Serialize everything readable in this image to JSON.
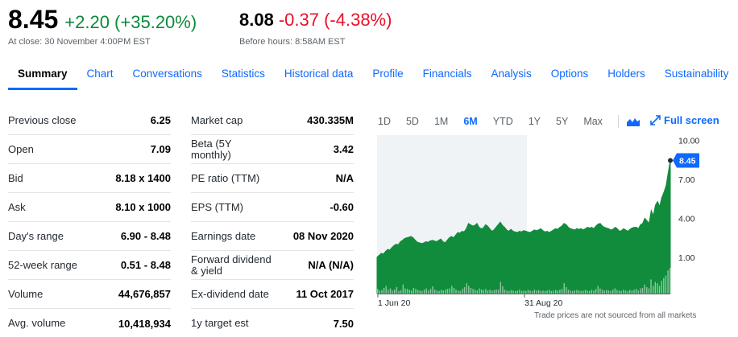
{
  "quote": {
    "price": "8.45",
    "change": "+2.20 (+35.20%)",
    "close_note": "At close: 30 November 4:00PM EST",
    "pre_price": "8.08",
    "pre_change": "-0.37 (-4.38%)",
    "pre_note": "Before hours: 8:58AM EST"
  },
  "tabs": [
    "Summary",
    "Chart",
    "Conversations",
    "Statistics",
    "Historical data",
    "Profile",
    "Financials",
    "Analysis",
    "Options",
    "Holders",
    "Sustainability"
  ],
  "stats_left": [
    {
      "label": "Previous close",
      "value": "6.25"
    },
    {
      "label": "Open",
      "value": "7.09"
    },
    {
      "label": "Bid",
      "value": "8.18 x 1400"
    },
    {
      "label": "Ask",
      "value": "8.10 x 1000"
    },
    {
      "label": "Day's range",
      "value": "6.90 - 8.48"
    },
    {
      "label": "52-week range",
      "value": "0.51 - 8.48"
    },
    {
      "label": "Volume",
      "value": "44,676,857"
    },
    {
      "label": "Avg. volume",
      "value": "10,418,934"
    }
  ],
  "stats_right": [
    {
      "label": "Market cap",
      "value": "430.335M"
    },
    {
      "label": "Beta (5Y monthly)",
      "value": "3.42"
    },
    {
      "label": "PE ratio (TTM)",
      "value": "N/A"
    },
    {
      "label": "EPS (TTM)",
      "value": "-0.60"
    },
    {
      "label": "Earnings date",
      "value": "08 Nov 2020"
    },
    {
      "label": "Forward dividend & yield",
      "value": "N/A (N/A)"
    },
    {
      "label": "Ex-dividend date",
      "value": "11 Oct 2017"
    },
    {
      "label": "1y target est",
      "value": "7.50"
    }
  ],
  "chart": {
    "ranges": [
      "1D",
      "5D",
      "1M",
      "6M",
      "YTD",
      "1Y",
      "5Y",
      "Max"
    ],
    "active_range": "6M",
    "fullscreen_label": "Full screen",
    "disclaimer": "Trade prices are not sourced from all markets",
    "chart_type_icon": "mountain-chart-icon",
    "fullscreen_icon": "expand-arrows-icon",
    "colors": {
      "area": "#118c3c",
      "accent": "#0f69ff",
      "shade": "#f0f3f5"
    }
  },
  "chart_data": {
    "type": "area",
    "x_tick_labels": [
      "1 Jun 20",
      "31 Aug 20"
    ],
    "y_tick_labels": [
      "10.00",
      "7.00",
      "4.00",
      "1.00"
    ],
    "y_ticks": [
      10,
      7,
      4,
      1
    ],
    "ylim": [
      -1.8,
      10.4
    ],
    "current_label": "8.45",
    "current_value": 8.45,
    "grid": false,
    "series": [
      {
        "values": [
          1.0,
          1.15,
          1.3,
          1.25,
          1.45,
          1.6,
          1.55,
          1.75,
          1.9,
          2.0,
          1.95,
          2.2,
          2.3,
          2.45,
          2.5,
          2.55,
          2.6,
          2.5,
          2.3,
          2.15,
          2.1,
          2.05,
          2.1,
          2.2,
          2.15,
          2.25,
          2.3,
          2.25,
          2.2,
          2.3,
          2.4,
          2.2,
          2.1,
          2.3,
          2.5,
          2.6,
          2.5,
          2.7,
          2.9,
          2.85,
          3.0,
          2.95,
          3.2,
          3.6,
          3.5,
          3.4,
          3.45,
          3.6,
          3.3,
          3.2,
          3.25,
          3.5,
          3.4,
          3.2,
          3.0,
          3.1,
          3.3,
          3.5,
          3.7,
          3.45,
          3.3,
          3.1,
          3.0,
          3.15,
          3.0,
          2.95,
          2.9,
          3.0,
          2.95,
          3.05,
          3.0,
          2.95,
          2.9,
          3.0,
          3.1,
          3.05,
          3.1,
          3.2,
          3.05,
          2.95,
          3.0,
          2.9,
          3.0,
          3.1,
          3.2,
          3.15,
          3.3,
          3.4,
          3.6,
          3.5,
          3.3,
          3.2,
          3.15,
          3.1,
          3.2,
          3.15,
          3.2,
          3.1,
          3.2,
          3.3,
          3.25,
          3.3,
          3.2,
          3.4,
          3.55,
          3.6,
          3.4,
          3.3,
          3.25,
          3.2,
          3.1,
          3.15,
          3.3,
          3.2,
          3.0,
          3.05,
          3.2,
          3.1,
          3.0,
          3.15,
          3.25,
          3.3,
          3.3,
          3.2,
          3.5,
          3.6,
          4.0,
          3.8,
          3.6,
          4.6,
          4.2,
          5.0,
          5.3,
          4.9,
          5.6,
          6.0,
          6.5,
          7.5,
          8.45
        ]
      }
    ],
    "volume_bars": [
      0.18,
      0.12,
      0.14,
      0.22,
      0.3,
      0.15,
      0.2,
      0.12,
      0.16,
      0.25,
      0.1,
      0.13,
      0.35,
      0.2,
      0.18,
      0.15,
      0.12,
      0.22,
      0.18,
      0.14,
      0.12,
      0.1,
      0.15,
      0.2,
      0.12,
      0.18,
      0.28,
      0.15,
      0.12,
      0.1,
      0.14,
      0.12,
      0.16,
      0.18,
      0.2,
      0.3,
      0.22,
      0.15,
      0.12,
      0.1,
      0.18,
      0.25,
      0.4,
      0.3,
      0.22,
      0.18,
      0.15,
      0.12,
      0.2,
      0.16,
      0.14,
      0.18,
      0.12,
      0.15,
      0.12,
      0.14,
      0.16,
      0.15,
      0.45,
      0.28,
      0.15,
      0.12,
      0.1,
      0.14,
      0.12,
      0.1,
      0.12,
      0.15,
      0.1,
      0.12,
      0.1,
      0.14,
      0.12,
      0.1,
      0.15,
      0.12,
      0.14,
      0.1,
      0.12,
      0.1,
      0.12,
      0.15,
      0.1,
      0.12,
      0.14,
      0.12,
      0.15,
      0.18,
      0.4,
      0.25,
      0.15,
      0.12,
      0.1,
      0.12,
      0.14,
      0.12,
      0.1,
      0.12,
      0.14,
      0.12,
      0.1,
      0.15,
      0.12,
      0.18,
      0.3,
      0.2,
      0.15,
      0.12,
      0.14,
      0.12,
      0.1,
      0.15,
      0.2,
      0.14,
      0.12,
      0.1,
      0.15,
      0.12,
      0.1,
      0.14,
      0.12,
      0.15,
      0.18,
      0.12,
      0.2,
      0.22,
      0.35,
      0.25,
      0.2,
      0.55,
      0.3,
      0.45,
      0.4,
      0.3,
      0.5,
      0.6,
      0.7,
      0.9,
      1.0
    ]
  }
}
